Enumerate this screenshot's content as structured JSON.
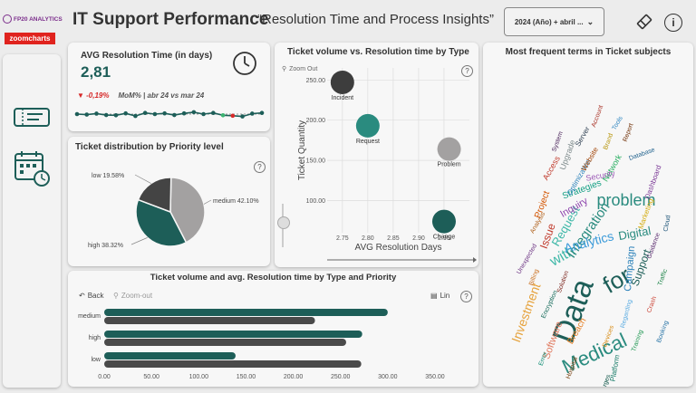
{
  "brand": {
    "logo_text": "FP20 ANALYTICS",
    "partner": "zoomcharts"
  },
  "header": {
    "title": "IT Support Performance",
    "subtitle": "“Resolution Time and Process Insights”",
    "date_filter": "2024 (Año) + abril ...",
    "info": "i"
  },
  "kpi": {
    "title": "AVG Resolution Time (in days)",
    "value": "2,81",
    "change": "-0,19%",
    "change_label": "MoM% | abr 24 vs mar 24",
    "sparkline": [
      0.5,
      0.48,
      0.52,
      0.46,
      0.45,
      0.53,
      0.42,
      0.55,
      0.5,
      0.53,
      0.46,
      0.53,
      0.58,
      0.5,
      0.55,
      0.45,
      0.43,
      0.4,
      0.52,
      0.55
    ]
  },
  "pie": {
    "title": "Ticket distribution by Priority level",
    "help": "?",
    "chart_data": {
      "type": "pie",
      "slices": [
        {
          "label": "medium 42.10%",
          "value": 42.1,
          "color": "#a3a1a1"
        },
        {
          "label": "high 38.32%",
          "value": 38.32,
          "color": "#1d5e58"
        },
        {
          "label": "low 19.58%",
          "value": 19.58,
          "color": "#444444"
        }
      ]
    }
  },
  "scatter": {
    "title": "Ticket volume vs. Resolution time by Type",
    "zoom_out": "Zoom Out",
    "help": "?",
    "chart_data": {
      "type": "scatter",
      "xlabel": "AVG Resolution Days",
      "ylabel": "Ticket Quantity",
      "xlim": [
        2.72,
        3.0
      ],
      "ylim": [
        60,
        265
      ],
      "xticks": [
        "2.75",
        "2.80",
        "2.85",
        "2.90",
        "2.95"
      ],
      "yticks": [
        "100.00",
        "150.00",
        "200.00",
        "250.00"
      ],
      "points": [
        {
          "label": "Incident",
          "x": 2.75,
          "y": 247,
          "color": "#3d3d3d"
        },
        {
          "label": "Request",
          "x": 2.8,
          "y": 193,
          "color": "#2a8b7f"
        },
        {
          "label": "Problem",
          "x": 2.96,
          "y": 164,
          "color": "#a3a1a1"
        },
        {
          "label": "Change",
          "x": 2.95,
          "y": 74,
          "color": "#1d5e58"
        }
      ]
    }
  },
  "bars": {
    "title": "Ticket volume and avg. Resolution time by Type and Priority",
    "back": "Back",
    "zoom_out": "Zoom-out",
    "scale": "Lin",
    "help": "?",
    "chart_data": {
      "type": "bar",
      "orientation": "horizontal",
      "categories": [
        "medium",
        "high",
        "low"
      ],
      "series": [
        {
          "values": [
            300,
            273,
            139
          ],
          "color": "#1d5e58"
        },
        {
          "values": [
            223,
            256,
            272
          ],
          "color": "#4a4a4a"
        }
      ],
      "xlim": [
        0,
        350
      ],
      "xticks": [
        "0.00",
        "50.00",
        "100.00",
        "150.00",
        "200.00",
        "250.00",
        "300.00",
        "350.00"
      ]
    }
  },
  "wordcloud": {
    "title": "Most frequent terms in Ticket subjects",
    "words": [
      {
        "t": "Data",
        "c": "#1d5e58"
      },
      {
        "t": "for",
        "c": "#1d5e58"
      },
      {
        "t": "Medical",
        "c": "#2a8b7f"
      },
      {
        "t": "problem",
        "c": "#2a8b7f"
      },
      {
        "t": "with",
        "c": "#3fb8a8"
      },
      {
        "t": "Integration",
        "c": "#2a8b7f"
      },
      {
        "t": "Investment",
        "c": "#e6a23c"
      },
      {
        "t": "Analytics",
        "c": "#3a9ad9"
      },
      {
        "t": "Digital",
        "c": "#2a8b7f"
      },
      {
        "t": "Request",
        "c": "#3fb8a8"
      },
      {
        "t": "Issue",
        "c": "#c0392b"
      },
      {
        "t": "Support",
        "c": "#1d5e58"
      },
      {
        "t": "Software",
        "c": "#e07a5f"
      },
      {
        "t": "Inquiry",
        "c": "#8e44ad"
      },
      {
        "t": "Campaign",
        "c": "#2980b9"
      },
      {
        "t": "Project",
        "c": "#d35400"
      },
      {
        "t": "Strategies",
        "c": "#16a085"
      },
      {
        "t": "Breach",
        "c": "#e67e22"
      },
      {
        "t": "Upgrade",
        "c": "#7f8c8d"
      },
      {
        "t": "Network",
        "c": "#27ae60"
      },
      {
        "t": "Security",
        "c": "#9b59b6"
      },
      {
        "t": "Access",
        "c": "#c0392b"
      },
      {
        "t": "Server",
        "c": "#2c3e50"
      },
      {
        "t": "Marketing",
        "c": "#d4ac0d"
      },
      {
        "t": "Optimization",
        "c": "#2980b9"
      },
      {
        "t": "Dashboard",
        "c": "#7d3c98"
      },
      {
        "t": "Platform",
        "c": "#117864"
      },
      {
        "t": "Website",
        "c": "#a04000"
      },
      {
        "t": "Regarding",
        "c": "#5dade2"
      },
      {
        "t": "Crash",
        "c": "#cb4335"
      },
      {
        "t": "Database",
        "c": "#1f618d"
      },
      {
        "t": "Brand",
        "c": "#b7950b"
      },
      {
        "t": "Unexpected",
        "c": "#6c3483"
      },
      {
        "t": "Encryption",
        "c": "#0e6655"
      },
      {
        "t": "Hospital",
        "c": "#784212"
      },
      {
        "t": "Training",
        "c": "#229954"
      },
      {
        "t": "Booking",
        "c": "#2874a6"
      },
      {
        "t": "Billing",
        "c": "#ca6f1e"
      },
      {
        "t": "Account",
        "c": "#a93226"
      },
      {
        "t": "Guidance",
        "c": "#5b2c6f"
      },
      {
        "t": "Error",
        "c": "#148f77"
      },
      {
        "t": "Devices",
        "c": "#d68910"
      },
      {
        "t": "Tools",
        "c": "#2e86c1"
      },
      {
        "t": "Solution",
        "c": "#7b241c"
      },
      {
        "t": "Traffic",
        "c": "#1e8449"
      },
      {
        "t": "Analysis",
        "c": "#af601a"
      },
      {
        "t": "Report",
        "c": "#6e2c00"
      },
      {
        "t": "Cloud",
        "c": "#1a5276"
      },
      {
        "t": "System",
        "c": "#4a235a"
      },
      {
        "t": "Charges",
        "c": "#0b5345"
      }
    ]
  }
}
